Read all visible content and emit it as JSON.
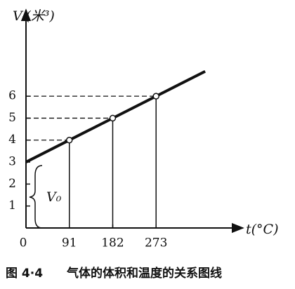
{
  "chart_data": {
    "type": "line",
    "ylabel": "Vₜ(米³)",
    "xlabel": "t(°C)",
    "annotation": "V₀",
    "caption": "图 4·4　　气体的体积和温度的关系图线",
    "series": [
      {
        "x": [
          0,
          376
        ],
        "values": [
          3,
          7.13
        ],
        "color": "#111"
      },
      {
        "x": [
          91,
          182,
          273
        ],
        "values": [
          4,
          5,
          6
        ],
        "color": "#111",
        "marker": "circle"
      }
    ],
    "xlim": [
      0,
      454
    ],
    "ylim": [
      0,
      9.9
    ],
    "xticks": [
      0,
      91,
      182,
      273
    ],
    "yticks": [
      1,
      2,
      3,
      4,
      5,
      6
    ]
  }
}
